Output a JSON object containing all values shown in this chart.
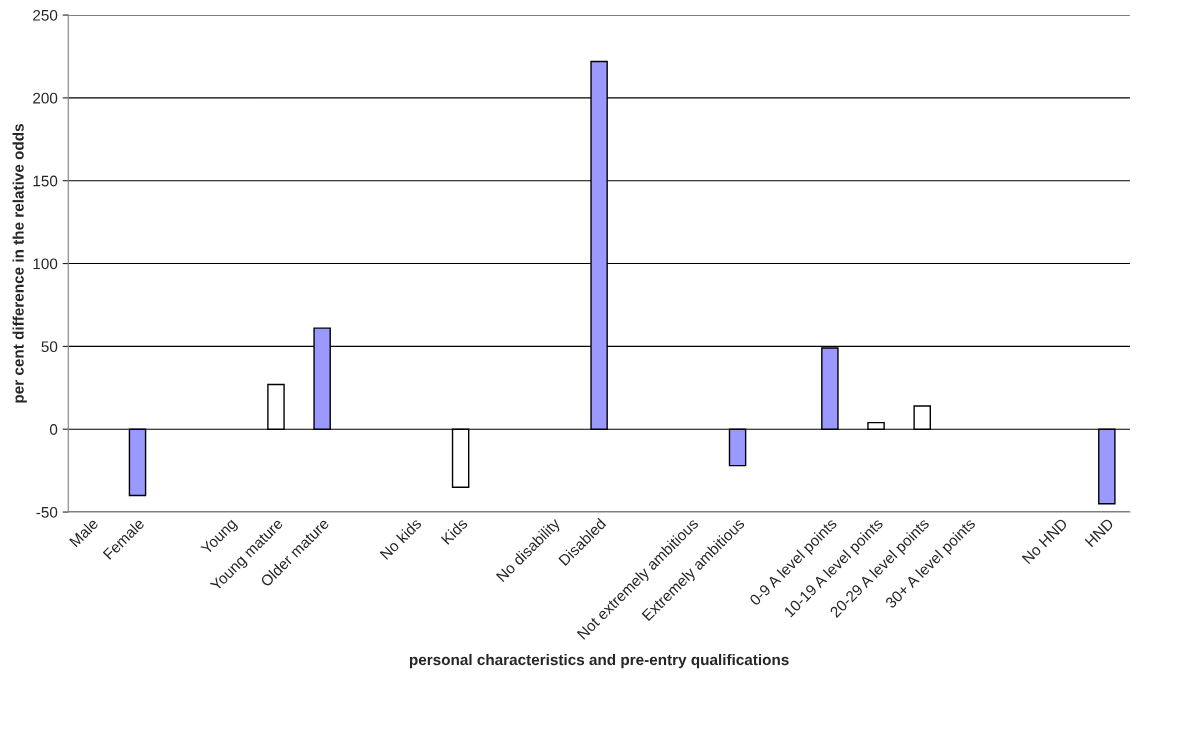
{
  "chart_data": {
    "type": "bar",
    "xlabel": "personal characteristics and pre-entry qualifications",
    "ylabel": "per cent difference in the relative odds",
    "categories": [
      "Male",
      "Female",
      null,
      "Young",
      "Young mature",
      "Older mature",
      null,
      "No kids",
      "Kids",
      null,
      "No disability",
      "Disabled",
      null,
      "Not extremely ambitious",
      "Extremely ambitious",
      null,
      "0-9 A level points",
      "10-19 A level points",
      "20-29 A level points",
      "30+ A level points",
      null,
      "No HND",
      "HND"
    ],
    "values": [
      null,
      -40,
      null,
      null,
      27,
      61,
      null,
      null,
      -35,
      null,
      null,
      222,
      null,
      null,
      -22,
      null,
      49,
      4,
      14,
      null,
      null,
      null,
      -45
    ],
    "colors": [
      "#9999ff",
      "#9999ff",
      "#ffffff",
      "#ffffff",
      "#ffffff",
      "#9999ff",
      "#ffffff",
      "#ffffff",
      "#ffffff",
      "#ffffff",
      "#ffffff",
      "#9999ff",
      "#ffffff",
      "#ffffff",
      "#9999ff",
      "#ffffff",
      "#9999ff",
      "#ffffff",
      "#ffffff",
      "#ffffff",
      "#ffffff",
      "#ffffff",
      "#9999ff"
    ],
    "ylim": [
      -50,
      250
    ],
    "yticks": [
      -50,
      0,
      50,
      100,
      150,
      200,
      250
    ],
    "grid": "y"
  }
}
